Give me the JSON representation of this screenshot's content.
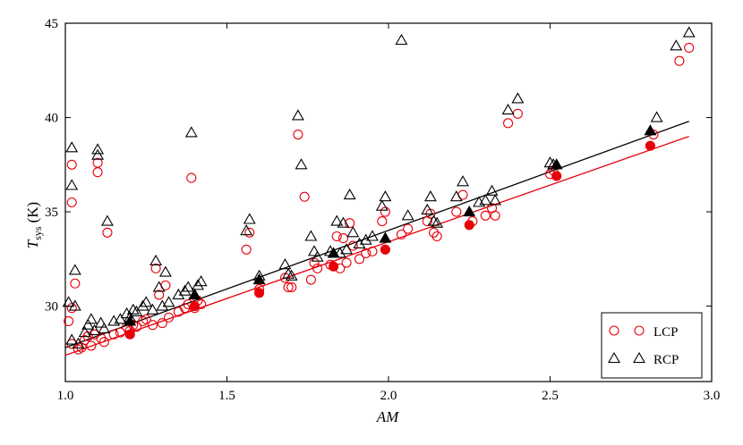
{
  "chart_data": {
    "type": "scatter",
    "title": "",
    "xlabel": "AM",
    "ylabel_main": "T",
    "ylabel_sub": "sys",
    "ylabel_unit": "(K)",
    "xlim": [
      1.0,
      3.0
    ],
    "ylim": [
      26.0,
      45.0
    ],
    "xticks": [
      1.0,
      1.5,
      2.0,
      2.5,
      3.0
    ],
    "xtick_labels": [
      "1.0",
      "1.5",
      "2.0",
      "2.5",
      "3.0"
    ],
    "yticks": [
      30,
      35,
      40,
      45
    ],
    "ytick_labels": [
      "30",
      "35",
      "40",
      "45"
    ],
    "grid": false,
    "legend_position": "lower-right",
    "series": [
      {
        "name": "LCP",
        "marker": "circle",
        "color": "#e8000b",
        "points": [
          [
            1.01,
            29.2
          ],
          [
            1.02,
            29.9
          ],
          [
            1.02,
            37.5
          ],
          [
            1.02,
            35.5
          ],
          [
            1.03,
            31.2
          ],
          [
            1.02,
            28.0
          ],
          [
            1.04,
            27.7
          ],
          [
            1.05,
            27.8
          ],
          [
            1.06,
            28.2
          ],
          [
            1.07,
            28.4
          ],
          [
            1.08,
            27.9
          ],
          [
            1.09,
            28.5
          ],
          [
            1.1,
            37.6
          ],
          [
            1.1,
            37.1
          ],
          [
            1.11,
            28.3
          ],
          [
            1.12,
            28.1
          ],
          [
            1.13,
            33.9
          ],
          [
            1.15,
            28.5
          ],
          [
            1.17,
            28.6
          ],
          [
            1.19,
            28.9
          ],
          [
            1.2,
            28.7
          ],
          [
            1.21,
            29.0
          ],
          [
            1.22,
            28.9
          ],
          [
            1.24,
            29.2
          ],
          [
            1.25,
            29.3
          ],
          [
            1.27,
            29.0
          ],
          [
            1.28,
            32.0
          ],
          [
            1.29,
            30.6
          ],
          [
            1.3,
            29.1
          ],
          [
            1.31,
            31.1
          ],
          [
            1.32,
            29.4
          ],
          [
            1.35,
            29.7
          ],
          [
            1.37,
            29.9
          ],
          [
            1.38,
            30.1
          ],
          [
            1.39,
            36.8
          ],
          [
            1.4,
            29.9
          ],
          [
            1.41,
            30.3
          ],
          [
            1.42,
            30.1
          ],
          [
            1.56,
            33.0
          ],
          [
            1.57,
            33.9
          ],
          [
            1.6,
            30.9
          ],
          [
            1.68,
            31.5
          ],
          [
            1.69,
            31.0
          ],
          [
            1.7,
            31.0
          ],
          [
            1.72,
            39.1
          ],
          [
            1.74,
            35.8
          ],
          [
            1.76,
            31.4
          ],
          [
            1.77,
            32.3
          ],
          [
            1.78,
            32.0
          ],
          [
            1.82,
            32.2
          ],
          [
            1.84,
            33.7
          ],
          [
            1.85,
            32.0
          ],
          [
            1.86,
            33.6
          ],
          [
            1.87,
            32.3
          ],
          [
            1.88,
            34.4
          ],
          [
            1.89,
            33.2
          ],
          [
            1.91,
            32.5
          ],
          [
            1.93,
            32.8
          ],
          [
            1.95,
            32.9
          ],
          [
            1.98,
            34.5
          ],
          [
            1.99,
            35.0
          ],
          [
            2.04,
            33.8
          ],
          [
            2.06,
            34.1
          ],
          [
            2.12,
            34.5
          ],
          [
            2.13,
            34.9
          ],
          [
            2.14,
            33.9
          ],
          [
            2.15,
            33.7
          ],
          [
            2.21,
            35.0
          ],
          [
            2.23,
            35.9
          ],
          [
            2.26,
            34.5
          ],
          [
            2.3,
            34.8
          ],
          [
            2.32,
            35.2
          ],
          [
            2.33,
            34.8
          ],
          [
            2.37,
            39.7
          ],
          [
            2.4,
            40.2
          ],
          [
            2.5,
            37.0
          ],
          [
            2.51,
            37.2
          ],
          [
            2.82,
            39.1
          ],
          [
            2.9,
            43.0
          ],
          [
            2.93,
            43.7
          ]
        ],
        "fit_points": [
          [
            1.2,
            28.5
          ],
          [
            1.4,
            30.0
          ],
          [
            1.6,
            30.7
          ],
          [
            1.83,
            32.1
          ],
          [
            1.99,
            33.0
          ],
          [
            2.25,
            34.3
          ],
          [
            2.52,
            36.9
          ],
          [
            2.81,
            38.5
          ]
        ],
        "fit_line": [
          [
            1.0,
            27.4
          ],
          [
            2.93,
            39.0
          ]
        ]
      },
      {
        "name": "RCP",
        "marker": "triangle",
        "color": "#000000",
        "points": [
          [
            1.01,
            30.2
          ],
          [
            1.02,
            38.4
          ],
          [
            1.02,
            36.4
          ],
          [
            1.02,
            28.2
          ],
          [
            1.03,
            31.9
          ],
          [
            1.03,
            30.0
          ],
          [
            1.04,
            28.0
          ],
          [
            1.06,
            28.6
          ],
          [
            1.07,
            29.0
          ],
          [
            1.08,
            29.3
          ],
          [
            1.09,
            28.7
          ],
          [
            1.1,
            38.3
          ],
          [
            1.1,
            38.0
          ],
          [
            1.11,
            29.1
          ],
          [
            1.12,
            28.8
          ],
          [
            1.13,
            34.5
          ],
          [
            1.15,
            29.2
          ],
          [
            1.17,
            29.3
          ],
          [
            1.19,
            29.6
          ],
          [
            1.2,
            29.4
          ],
          [
            1.21,
            29.8
          ],
          [
            1.22,
            29.7
          ],
          [
            1.24,
            30.0
          ],
          [
            1.25,
            30.2
          ],
          [
            1.27,
            29.8
          ],
          [
            1.28,
            32.4
          ],
          [
            1.29,
            31.0
          ],
          [
            1.3,
            30.0
          ],
          [
            1.31,
            31.8
          ],
          [
            1.32,
            30.2
          ],
          [
            1.35,
            30.6
          ],
          [
            1.37,
            30.8
          ],
          [
            1.38,
            31.0
          ],
          [
            1.39,
            39.2
          ],
          [
            1.4,
            30.6
          ],
          [
            1.41,
            31.1
          ],
          [
            1.42,
            31.3
          ],
          [
            1.56,
            34.0
          ],
          [
            1.57,
            34.6
          ],
          [
            1.6,
            31.6
          ],
          [
            1.68,
            32.2
          ],
          [
            1.69,
            31.7
          ],
          [
            1.7,
            31.6
          ],
          [
            1.72,
            40.1
          ],
          [
            1.73,
            37.5
          ],
          [
            1.76,
            33.7
          ],
          [
            1.77,
            32.9
          ],
          [
            1.78,
            32.6
          ],
          [
            1.82,
            32.9
          ],
          [
            1.84,
            34.5
          ],
          [
            1.85,
            32.8
          ],
          [
            1.86,
            34.4
          ],
          [
            1.87,
            33.0
          ],
          [
            1.88,
            35.9
          ],
          [
            1.89,
            33.9
          ],
          [
            1.91,
            33.3
          ],
          [
            1.93,
            33.5
          ],
          [
            1.95,
            33.7
          ],
          [
            1.98,
            35.3
          ],
          [
            1.99,
            35.8
          ],
          [
            2.04,
            44.1
          ],
          [
            2.06,
            34.8
          ],
          [
            2.12,
            35.1
          ],
          [
            2.13,
            35.8
          ],
          [
            2.14,
            34.5
          ],
          [
            2.15,
            34.4
          ],
          [
            2.21,
            35.8
          ],
          [
            2.23,
            36.6
          ],
          [
            2.28,
            35.5
          ],
          [
            2.3,
            35.6
          ],
          [
            2.32,
            36.1
          ],
          [
            2.33,
            35.6
          ],
          [
            2.37,
            40.4
          ],
          [
            2.4,
            41.0
          ],
          [
            2.5,
            37.6
          ],
          [
            2.51,
            37.5
          ],
          [
            2.83,
            40.0
          ],
          [
            2.89,
            43.8
          ],
          [
            2.93,
            44.5
          ]
        ],
        "fit_points": [
          [
            1.2,
            29.2
          ],
          [
            1.4,
            30.6
          ],
          [
            1.6,
            31.4
          ],
          [
            1.83,
            32.8
          ],
          [
            1.99,
            33.6
          ],
          [
            2.25,
            35.0
          ],
          [
            2.52,
            37.5
          ],
          [
            2.81,
            39.3
          ]
        ],
        "fit_line": [
          [
            1.0,
            27.8
          ],
          [
            2.93,
            39.8
          ]
        ]
      }
    ]
  }
}
